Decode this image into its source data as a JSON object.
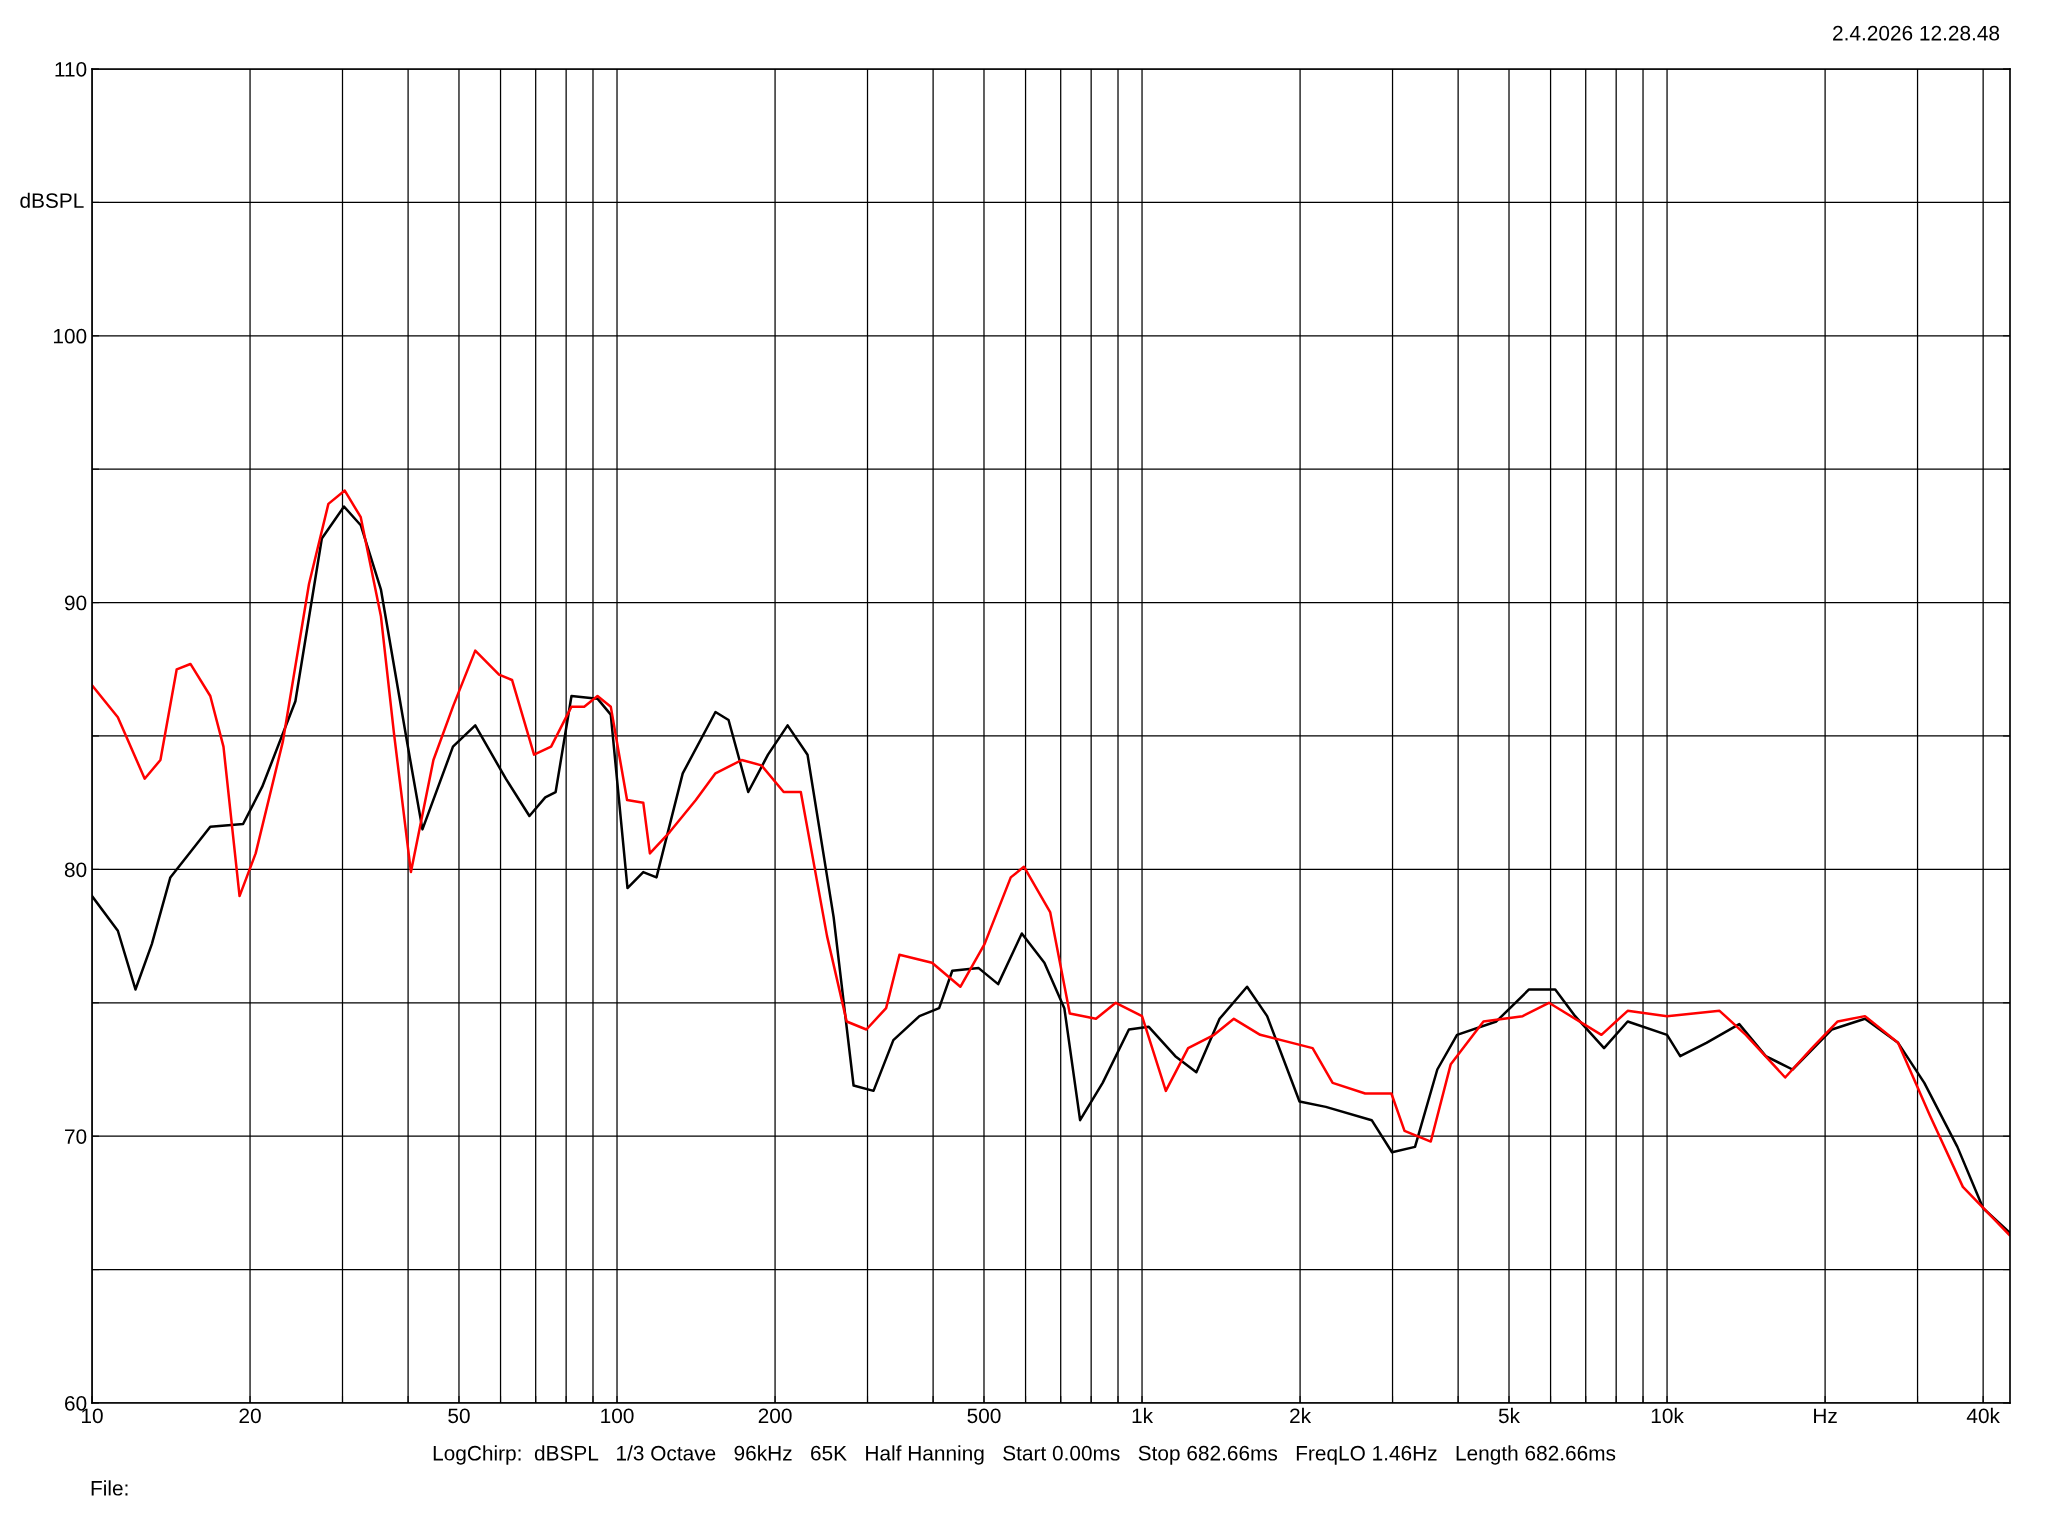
{
  "chart_data": {
    "type": "line",
    "log": "x",
    "grid": true,
    "legend": false,
    "line_style": "solid",
    "marker": "none",
    "ylabel": "dBSPL",
    "annotations": [
      "2.4.2026 12.28.48",
      "LogChirp:  dBSPL   1/3 Octave   96kHz   65K   Half Hanning   Start 0.00ms   Stop 682.66ms   FreqLO 1.46Hz   Length 682.66ms",
      "File:"
    ],
    "xlim": [
      10,
      45000
    ],
    "ylim": [
      60,
      110
    ],
    "xticks": [
      10,
      20,
      {
        "value": 30,
        "label": null
      },
      {
        "value": 40,
        "label": null
      },
      50,
      {
        "value": 60,
        "label": null
      },
      {
        "value": 70,
        "label": null
      },
      {
        "value": 80,
        "label": null
      },
      {
        "value": 90,
        "label": null
      },
      100,
      200,
      {
        "value": 300,
        "label": null
      },
      {
        "value": 400,
        "label": null
      },
      500,
      {
        "value": 600,
        "label": null
      },
      {
        "value": 700,
        "label": null
      },
      {
        "value": 800,
        "label": null
      },
      {
        "value": 900,
        "label": null
      },
      {
        "value": 1000,
        "label": "1k"
      },
      {
        "value": 2000,
        "label": "2k"
      },
      {
        "value": 3000,
        "label": null
      },
      {
        "value": 4000,
        "label": null
      },
      {
        "value": 5000,
        "label": "5k"
      },
      {
        "value": 6000,
        "label": null
      },
      {
        "value": 7000,
        "label": null
      },
      {
        "value": 8000,
        "label": null
      },
      {
        "value": 9000,
        "label": null
      },
      {
        "value": 10000,
        "label": "10k"
      },
      {
        "value": 20000,
        "label": "Hz"
      },
      {
        "value": 30000,
        "label": null
      },
      {
        "value": 40000,
        "label": "40k"
      }
    ],
    "yticks": [
      60,
      {
        "value": 65,
        "label": null
      },
      70,
      {
        "value": 75,
        "label": null
      },
      80,
      {
        "value": 85,
        "label": null
      },
      90,
      {
        "value": 95,
        "label": null
      },
      100,
      {
        "value": 105,
        "label": null
      },
      110
    ],
    "series": [
      {
        "color": "#000000",
        "x": [
          10,
          11.2,
          12.1,
          13,
          14.1,
          16.8,
          19.4,
          21.1,
          24.4,
          27.4,
          30.2,
          32.5,
          35.5,
          39.8,
          42.6,
          48.7,
          53.7,
          61.4,
          68.1,
          73,
          76.4,
          81.9,
          91.8,
          97.3,
          104.7,
          112.2,
          118.9,
          133.4,
          154,
          163.1,
          177.8,
          193.9,
          211.3,
          230.6,
          258.6,
          282.2,
          308,
          336,
          376.7,
          410.7,
          435.1,
          488.5,
          532,
          590.2,
          651.6,
          711.2,
          762.1,
          841.4,
          944.1,
          1030,
          1157,
          1269,
          1405,
          1585,
          1731,
          1995,
          2239,
          2738,
          2993,
          3311,
          3651,
          3981,
          4730,
          5458,
          6124,
          6683,
          7586,
          8414,
          10000,
          10593,
          11885,
          13725,
          15417,
          17338,
          20606,
          23823,
          27542,
          30903,
          35727,
          40000,
          44875
        ],
        "values": [
          79.0,
          77.7,
          75.5,
          77.2,
          79.7,
          81.6,
          81.7,
          83.1,
          86.3,
          92.4,
          93.6,
          92.9,
          90.5,
          84.8,
          81.5,
          84.6,
          85.4,
          83.4,
          82.0,
          82.7,
          82.9,
          86.5,
          86.4,
          85.8,
          79.3,
          79.9,
          79.7,
          83.6,
          85.9,
          85.6,
          82.9,
          84.3,
          85.4,
          84.3,
          78.2,
          71.9,
          71.7,
          73.6,
          74.5,
          74.8,
          76.2,
          76.3,
          75.7,
          77.6,
          76.5,
          74.8,
          70.6,
          72.0,
          74.0,
          74.1,
          73.0,
          72.4,
          74.4,
          75.6,
          74.5,
          71.3,
          71.1,
          70.6,
          69.4,
          69.6,
          72.5,
          73.8,
          74.3,
          75.5,
          75.5,
          74.5,
          73.3,
          74.3,
          73.8,
          73.0,
          73.5,
          74.2,
          73.0,
          72.5,
          74.0,
          74.4,
          73.5,
          72.0,
          69.6,
          67.3,
          66.4
        ]
      },
      {
        "color": "#ff0000",
        "x": [
          10,
          11.2,
          12.6,
          13.5,
          14.5,
          15.4,
          16.8,
          17.8,
          19.1,
          20.5,
          23.1,
          25.9,
          28.2,
          30.3,
          32.5,
          35.5,
          37.6,
          40.5,
          44.7,
          48.7,
          53.7,
          59.6,
          63.1,
          69.5,
          74.9,
          81.9,
          86.6,
          91.8,
          97.3,
          104.5,
          112.2,
          115.5,
          126,
          141.3,
          154,
          172.8,
          188.4,
          207.7,
          223.9,
          251.2,
          273.8,
          298.5,
          325.5,
          345.1,
          398.1,
          450.8,
          501.2,
          562.3,
          595.7,
          668.3,
          728.4,
          817,
          891.3,
          1000,
          1110,
          1224,
          1372,
          1496,
          1679,
          2113,
          2307,
          2661,
          2985,
          3162,
          3548,
          3873,
          4470,
          5309,
          5957,
          7499,
          8414,
          10000,
          12589,
          14125,
          16788,
          18880,
          21135,
          23823,
          27542,
          31623,
          36596,
          44875
        ],
        "values": [
          86.9,
          85.7,
          83.4,
          84.1,
          87.5,
          87.7,
          86.5,
          84.6,
          79.0,
          80.6,
          84.8,
          90.7,
          93.7,
          94.2,
          93.2,
          89.5,
          85.1,
          79.9,
          84.1,
          86.1,
          88.2,
          87.3,
          87.1,
          84.3,
          84.6,
          86.1,
          86.1,
          86.5,
          86.1,
          82.6,
          82.5,
          80.6,
          81.4,
          82.6,
          83.6,
          84.1,
          83.9,
          82.9,
          82.9,
          77.5,
          74.3,
          74.0,
          74.8,
          76.8,
          76.5,
          75.6,
          77.2,
          79.7,
          80.1,
          78.4,
          74.6,
          74.4,
          75.0,
          74.5,
          71.7,
          73.3,
          73.8,
          74.4,
          73.8,
          73.3,
          72.0,
          71.6,
          71.6,
          70.2,
          69.8,
          72.7,
          74.3,
          74.5,
          75.0,
          73.8,
          74.7,
          74.5,
          74.7,
          73.8,
          72.2,
          73.3,
          74.3,
          74.5,
          73.5,
          70.8,
          68.1,
          66.3
        ]
      }
    ]
  }
}
